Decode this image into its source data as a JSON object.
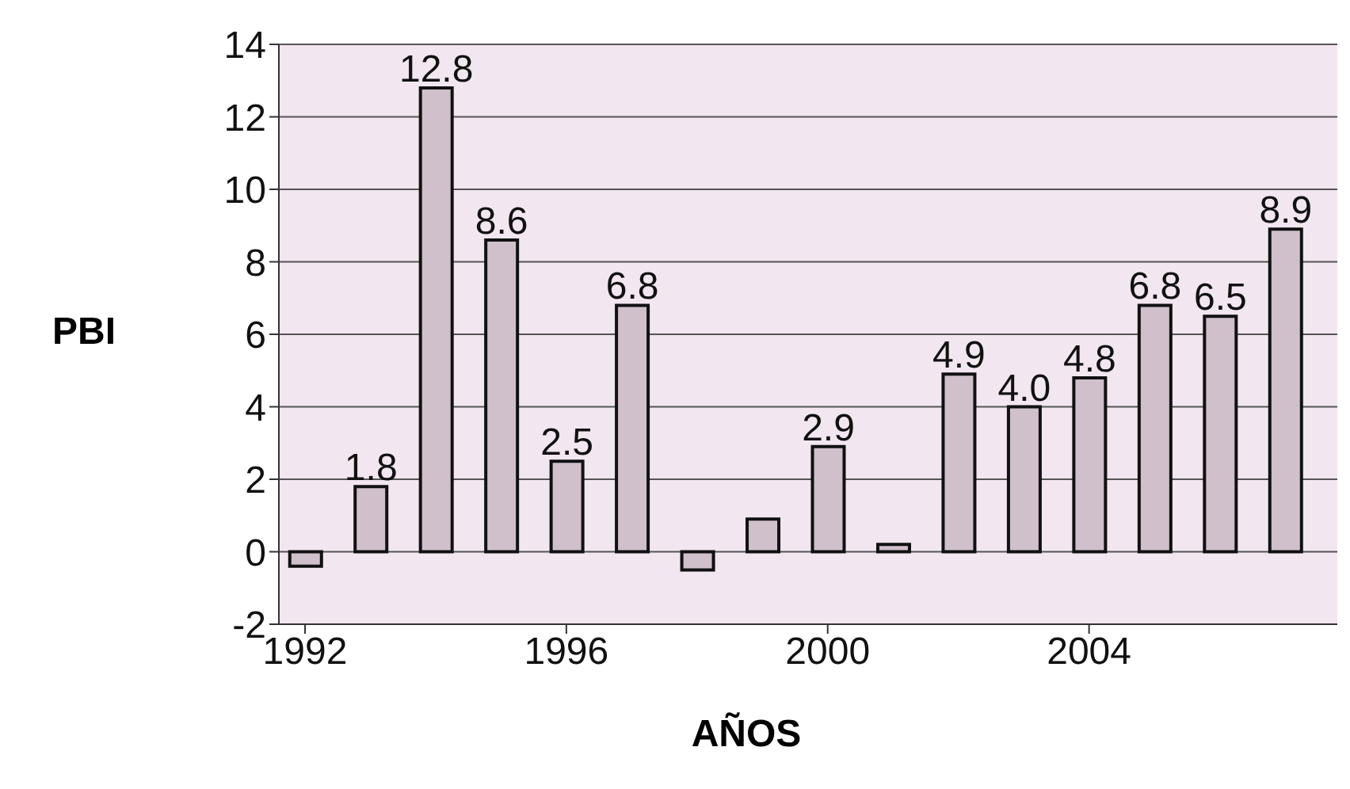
{
  "chart_data": {
    "type": "bar",
    "xlabel": "AÑOS",
    "ylabel": "PBI",
    "x": [
      1992,
      1993,
      1994,
      1995,
      1996,
      1997,
      1998,
      1999,
      2000,
      2001,
      2002,
      2003,
      2004,
      2005,
      2006,
      2007
    ],
    "values": [
      -0.4,
      1.8,
      12.8,
      8.6,
      2.5,
      6.8,
      -0.5,
      0.9,
      2.9,
      0.2,
      4.9,
      4.0,
      4.8,
      6.8,
      6.5,
      8.9
    ],
    "value_labels": [
      null,
      "1.8",
      "12.8",
      "8.6",
      "2.5",
      "6.8",
      null,
      null,
      "2.9",
      null,
      "4.9",
      "4.0",
      "4.8",
      "6.8",
      "6.5",
      "8.9"
    ],
    "color": "#cfc0cc",
    "xlim": [
      1991.6,
      2007.8
    ],
    "xticks": [
      1992,
      1996,
      2000,
      2004
    ],
    "ylim": [
      -2,
      14
    ],
    "yticks": [
      -2,
      0,
      2,
      4,
      6,
      8,
      10,
      12,
      14
    ],
    "grid": "y"
  }
}
